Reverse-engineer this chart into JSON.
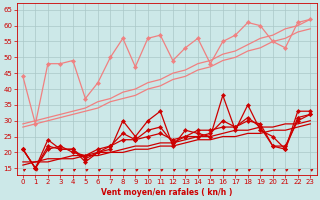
{
  "title": "",
  "xlabel": "Vent moyen/en rafales ( kn/h )",
  "ylabel": "",
  "bg_color": "#cce8e8",
  "ylim": [
    13,
    67
  ],
  "xlim": [
    -0.5,
    23.5
  ],
  "yticks": [
    15,
    20,
    25,
    30,
    35,
    40,
    45,
    50,
    55,
    60,
    65
  ],
  "xticks": [
    0,
    1,
    2,
    3,
    4,
    5,
    6,
    7,
    8,
    9,
    10,
    11,
    12,
    13,
    14,
    15,
    16,
    17,
    18,
    19,
    20,
    21,
    22,
    23
  ],
  "x": [
    0,
    1,
    2,
    3,
    4,
    5,
    6,
    7,
    8,
    9,
    10,
    11,
    12,
    13,
    14,
    15,
    16,
    17,
    18,
    19,
    20,
    21,
    22,
    23
  ],
  "lp_line1": [
    44,
    29,
    48,
    48,
    49,
    37,
    42,
    50,
    56,
    47,
    56,
    57,
    49,
    53,
    56,
    48,
    55,
    57,
    61,
    60,
    55,
    53,
    61,
    62
  ],
  "lp_trend1": [
    28,
    29,
    30,
    31,
    32,
    33,
    34,
    36,
    37,
    38,
    40,
    41,
    43,
    44,
    46,
    47,
    49,
    50,
    52,
    53,
    55,
    56,
    58,
    59
  ],
  "lp_trend2": [
    29,
    30,
    31,
    32,
    33,
    34,
    36,
    37,
    39,
    40,
    42,
    43,
    45,
    46,
    48,
    49,
    51,
    52,
    54,
    56,
    57,
    59,
    60,
    62
  ],
  "r_line1": [
    21,
    15,
    24,
    21,
    21,
    17,
    20,
    21,
    30,
    25,
    30,
    33,
    22,
    27,
    26,
    25,
    38,
    27,
    35,
    27,
    25,
    21,
    33,
    33
  ],
  "r_line2": [
    21,
    15,
    22,
    21,
    21,
    18,
    20,
    22,
    26,
    24,
    27,
    28,
    23,
    25,
    25,
    26,
    30,
    28,
    31,
    28,
    22,
    21,
    31,
    32
  ],
  "r_line3": [
    21,
    15,
    21,
    22,
    20,
    19,
    21,
    22,
    24,
    24,
    25,
    26,
    24,
    25,
    27,
    27,
    28,
    28,
    30,
    29,
    22,
    22,
    30,
    32
  ],
  "r_trend1": [
    16,
    17,
    17,
    18,
    18,
    19,
    19,
    20,
    20,
    21,
    21,
    22,
    22,
    23,
    24,
    24,
    25,
    25,
    26,
    26,
    27,
    27,
    28,
    29
  ],
  "r_trend2": [
    17,
    17,
    18,
    18,
    19,
    19,
    20,
    20,
    21,
    22,
    22,
    23,
    23,
    24,
    25,
    25,
    26,
    27,
    27,
    28,
    28,
    29,
    29,
    30
  ],
  "lp_color": "#f08080",
  "r_color": "#cc0000",
  "grid_color": "#aac8c8",
  "tick_color": "#cc0000",
  "xlabel_color": "#cc0000"
}
